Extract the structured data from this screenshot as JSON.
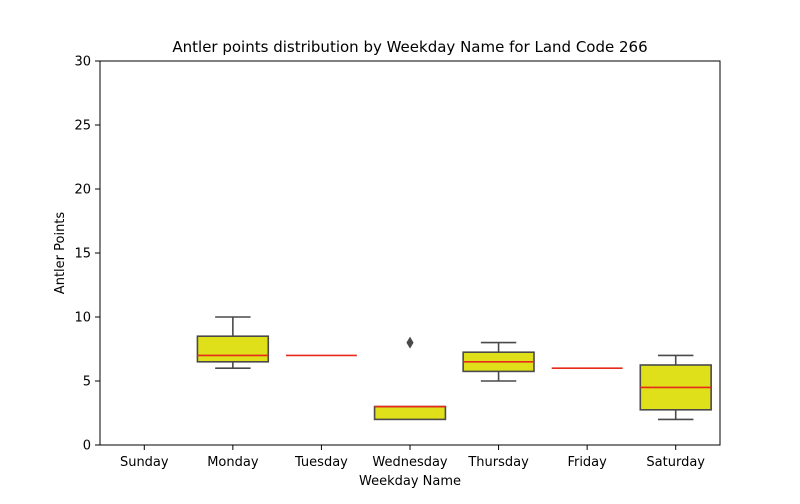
{
  "chart_data": {
    "type": "box",
    "title": "Antler points distribution by Weekday Name for Land Code 266",
    "xlabel": "Weekday Name",
    "ylabel": "Antler Points",
    "ylim": [
      0,
      30
    ],
    "yticks": [
      0,
      5,
      10,
      15,
      20,
      25,
      30
    ],
    "categories": [
      "Sunday",
      "Monday",
      "Tuesday",
      "Wednesday",
      "Thursday",
      "Friday",
      "Saturday"
    ],
    "boxes": [
      null,
      {
        "q1": 6.5,
        "median": 7,
        "q3": 8.5,
        "whisker_low": 6,
        "whisker_high": 10,
        "outliers": []
      },
      {
        "q1": 7,
        "median": 7,
        "q3": 7,
        "whisker_low": 7,
        "whisker_high": 7,
        "outliers": []
      },
      {
        "q1": 2,
        "median": 3,
        "q3": 3,
        "whisker_low": 2,
        "whisker_high": 3,
        "outliers": [
          8
        ]
      },
      {
        "q1": 5.75,
        "median": 6.5,
        "q3": 7.25,
        "whisker_low": 5,
        "whisker_high": 8,
        "outliers": []
      },
      {
        "q1": 6,
        "median": 6,
        "q3": 6,
        "whisker_low": 6,
        "whisker_high": 6,
        "outliers": []
      },
      {
        "q1": 2.75,
        "median": 4.5,
        "q3": 6.25,
        "whisker_low": 2,
        "whisker_high": 7,
        "outliers": []
      }
    ],
    "colors": {
      "box_fill": "#dfdf1a",
      "box_edge": "#4a4a4a",
      "median": "#e8291c",
      "axis": "#000000"
    },
    "grid": false,
    "legend": "none"
  }
}
